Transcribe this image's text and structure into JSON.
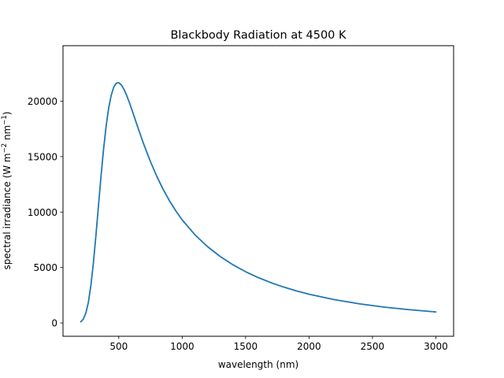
{
  "chart_data": {
    "type": "line",
    "title": "Blackbody Radiation at 4500 K",
    "xlabel": "wavelength (nm)",
    "ylabel": {
      "base": "spectral irradiance (W m",
      "sup1": "−2",
      "mid": " nm",
      "sup2": "−1",
      "end": ")"
    },
    "xlim": [
      60,
      3140
    ],
    "ylim": [
      -1200,
      25000
    ],
    "xticks": [
      500,
      1000,
      1500,
      2000,
      2500,
      3000
    ],
    "yticks": [
      0,
      5000,
      10000,
      15000,
      20000
    ],
    "grid": false,
    "series": [
      {
        "color": "#1f77b4",
        "x": [
          200,
          220,
          240,
          260,
          280,
          300,
          320,
          340,
          360,
          380,
          400,
          420,
          440,
          460,
          480,
          500,
          520,
          540,
          560,
          580,
          600,
          620,
          640,
          660,
          680,
          700,
          750,
          800,
          850,
          900,
          950,
          1000,
          1100,
          1200,
          1300,
          1400,
          1500,
          1600,
          1700,
          1800,
          1900,
          2000,
          2200,
          2400,
          2600,
          2800,
          3000
        ],
        "y": [
          104,
          339,
          871,
          1859,
          3395,
          5466,
          7939,
          10612,
          13259,
          15682,
          17740,
          19360,
          20527,
          21261,
          21617,
          21661,
          21461,
          21081,
          20572,
          19976,
          19330,
          18657,
          17977,
          17305,
          16648,
          16014,
          14532,
          13209,
          12038,
          11005,
          10096,
          9292,
          7953,
          6875,
          5988,
          5247,
          4621,
          4088,
          3630,
          3235,
          2892,
          2592,
          2100,
          1720,
          1420,
          1185,
          995
        ]
      }
    ]
  }
}
